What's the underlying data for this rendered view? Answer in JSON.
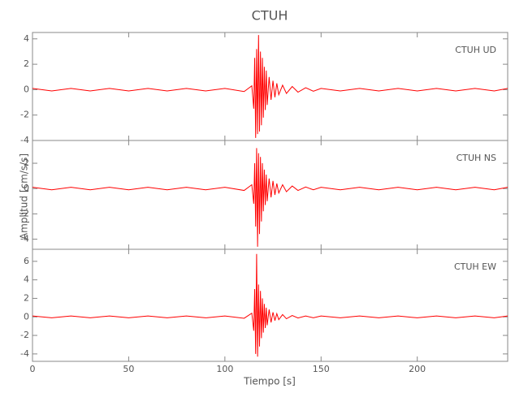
{
  "chart_data": [
    {
      "type": "line",
      "title": "CTUH",
      "annotation": "CTUH  UD",
      "x": [
        0,
        10,
        20,
        30,
        40,
        50,
        60,
        70,
        80,
        90,
        100,
        110,
        114,
        115,
        115.5,
        116,
        116.5,
        117,
        117.5,
        118,
        118.5,
        119,
        119.5,
        120,
        120.5,
        121,
        121.5,
        122,
        123,
        124,
        125,
        126,
        127,
        128,
        130,
        132,
        135,
        138,
        142,
        146,
        150,
        160,
        170,
        180,
        190,
        200,
        210,
        220,
        230,
        240,
        247
      ],
      "series": [
        {
          "name": "UD",
          "color": "#ff0000",
          "values": [
            0.1,
            -0.1,
            0.1,
            -0.1,
            0.1,
            -0.1,
            0.1,
            -0.1,
            0.1,
            -0.1,
            0.1,
            -0.15,
            0.3,
            -1.5,
            2.5,
            -3.8,
            3.2,
            -3.5,
            4.3,
            -3.3,
            3.0,
            -2.8,
            2.5,
            -2.2,
            1.8,
            -1.6,
            1.5,
            -1.2,
            1.0,
            -0.8,
            0.7,
            -0.6,
            0.5,
            -0.4,
            0.35,
            -0.3,
            0.25,
            -0.2,
            0.15,
            -0.12,
            0.1,
            -0.1,
            0.1,
            -0.1,
            0.1,
            -0.1,
            0.1,
            -0.1,
            0.1,
            -0.1,
            0.1
          ]
        }
      ],
      "xlim": [
        0,
        247
      ],
      "xticks": [
        0,
        50,
        100,
        150,
        200
      ],
      "ylim": [
        -4,
        4.5
      ],
      "yticks": [
        -4,
        -2,
        0,
        2,
        4
      ]
    },
    {
      "type": "line",
      "annotation": "CTUH  NS",
      "ylabel": "Amplitud [cm/s/s]",
      "x": [
        0,
        10,
        20,
        30,
        40,
        50,
        60,
        70,
        80,
        90,
        100,
        110,
        114,
        115,
        115.5,
        116,
        116.5,
        117,
        117.5,
        118,
        118.5,
        119,
        119.5,
        120,
        120.5,
        121,
        121.5,
        122,
        123,
        124,
        125,
        126,
        127,
        128,
        130,
        132,
        135,
        138,
        142,
        146,
        150,
        160,
        170,
        180,
        190,
        200,
        210,
        220,
        230,
        240,
        247
      ],
      "series": [
        {
          "name": "NS",
          "color": "#ff0000",
          "values": [
            0.1,
            -0.1,
            0.1,
            -0.1,
            0.1,
            -0.1,
            0.1,
            -0.1,
            0.1,
            -0.1,
            0.1,
            -0.15,
            0.3,
            -1.2,
            2.0,
            -3.0,
            3.2,
            -4.6,
            2.8,
            -3.6,
            2.5,
            -2.6,
            2.0,
            -1.8,
            1.5,
            -1.3,
            1.1,
            -1.0,
            0.8,
            -0.7,
            0.6,
            -0.5,
            0.4,
            -0.35,
            0.3,
            -0.25,
            0.2,
            -0.15,
            0.12,
            -0.1,
            0.1,
            -0.1,
            0.1,
            -0.1,
            0.1,
            -0.1,
            0.1,
            -0.1,
            0.1,
            -0.1,
            0.1
          ]
        }
      ],
      "xlim": [
        0,
        247
      ],
      "xticks": [
        0,
        50,
        100,
        150,
        200
      ],
      "ylim": [
        -4.8,
        3.8
      ],
      "yticks": [
        -4,
        -2,
        0,
        2
      ]
    },
    {
      "type": "line",
      "annotation": "CTUH  EW",
      "xlabel": "Tiempo [s]",
      "x": [
        0,
        10,
        20,
        30,
        40,
        50,
        60,
        70,
        80,
        90,
        100,
        110,
        114,
        115,
        115.5,
        116,
        116.5,
        117,
        117.5,
        118,
        118.5,
        119,
        119.5,
        120,
        120.5,
        121,
        121.5,
        122,
        123,
        124,
        125,
        126,
        127,
        128,
        130,
        132,
        135,
        138,
        142,
        146,
        150,
        160,
        170,
        180,
        190,
        200,
        210,
        220,
        230,
        240,
        247
      ],
      "series": [
        {
          "name": "EW",
          "color": "#ff0000",
          "values": [
            0.1,
            -0.1,
            0.1,
            -0.1,
            0.1,
            -0.1,
            0.1,
            -0.1,
            0.1,
            -0.1,
            0.1,
            -0.15,
            0.4,
            -1.5,
            3.0,
            -4.0,
            6.8,
            -4.3,
            3.5,
            -3.2,
            2.8,
            -2.3,
            2.0,
            -1.7,
            1.4,
            -1.2,
            1.0,
            -0.9,
            0.8,
            -0.6,
            0.5,
            -0.4,
            0.35,
            -0.3,
            0.25,
            -0.2,
            0.15,
            -0.12,
            0.1,
            -0.1,
            0.1,
            -0.1,
            0.1,
            -0.1,
            0.1,
            -0.1,
            0.1,
            -0.1,
            0.1,
            -0.1,
            0.1
          ]
        }
      ],
      "xlim": [
        0,
        247
      ],
      "xticks": [
        0,
        50,
        100,
        150,
        200
      ],
      "ylim": [
        -4.8,
        7.3
      ],
      "yticks": [
        -4,
        -2,
        0,
        2,
        4,
        6
      ]
    }
  ]
}
